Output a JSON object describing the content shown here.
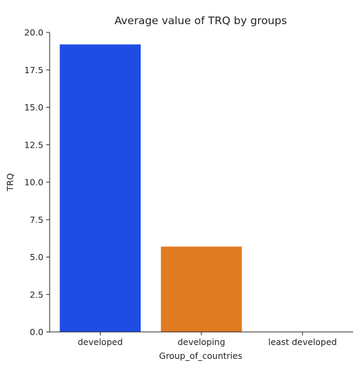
{
  "chart_data": {
    "type": "bar",
    "title": "Average value of TRQ by groups",
    "xlabel": "Group_of_countries",
    "ylabel": "TRQ",
    "categories": [
      "developed",
      "developing",
      "least developed"
    ],
    "values": [
      19.2,
      5.7,
      0.0
    ],
    "colors": [
      "#1f4de4",
      "#e07b21",
      "#2ca02c"
    ],
    "ylim": [
      0,
      20
    ],
    "yticks": [
      "0.0",
      "2.5",
      "5.0",
      "7.5",
      "10.0",
      "12.5",
      "15.0",
      "17.5",
      "20.0"
    ],
    "grid": false,
    "legend": "none",
    "spines": "left-bottom"
  }
}
